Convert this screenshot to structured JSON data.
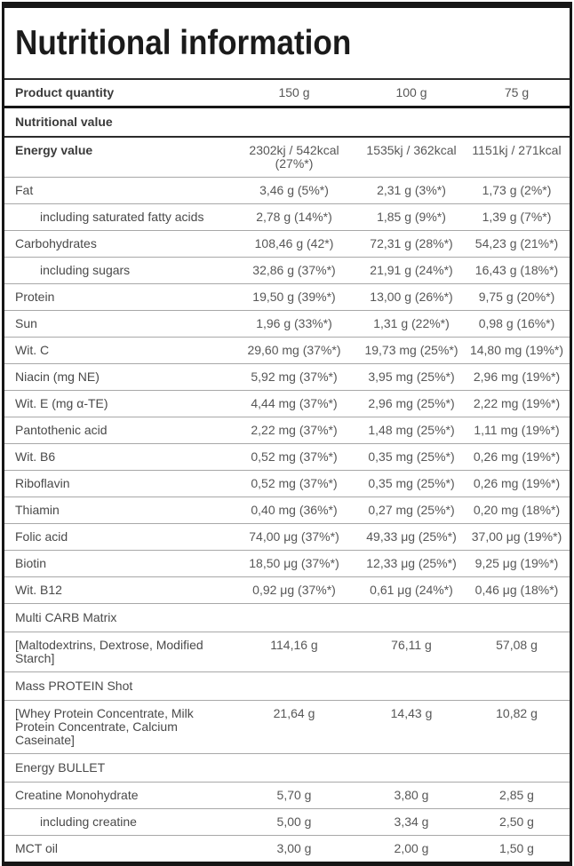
{
  "title": "Nutritional information",
  "header": {
    "label": "Product quantity",
    "values": [
      "150 g",
      "100 g",
      "75 g"
    ]
  },
  "rows": [
    {
      "type": "section",
      "bold": true,
      "sep": "dark",
      "label": "Nutritional value"
    },
    {
      "bold": true,
      "label": "Energy value",
      "values": [
        "2302kj / 542kcal (27%*)",
        "1535kj / 362kcal",
        "1151kj / 271kcal"
      ]
    },
    {
      "label": "Fat",
      "values": [
        "3,46 g (5%*)",
        "2,31 g (3%*)",
        "1,73 g (2%*)"
      ]
    },
    {
      "indent": true,
      "label": "including saturated fatty acids",
      "values": [
        "2,78 g (14%*)",
        "1,85 g (9%*)",
        "1,39 g (7%*)"
      ]
    },
    {
      "label": "Carbohydrates",
      "values": [
        "108,46 g (42*)",
        "72,31 g (28%*)",
        "54,23 g (21%*)"
      ]
    },
    {
      "indent": true,
      "label": "including sugars",
      "values": [
        "32,86 g (37%*)",
        "21,91 g (24%*)",
        "16,43 g (18%*)"
      ]
    },
    {
      "label": "Protein",
      "values": [
        "19,50 g (39%*)",
        "13,00 g (26%*)",
        "9,75 g (20%*)"
      ]
    },
    {
      "label": "Sun",
      "values": [
        "1,96 g (33%*)",
        "1,31 g (22%*)",
        "0,98 g (16%*)"
      ]
    },
    {
      "label": "Wit. C",
      "values": [
        "29,60 mg (37%*)",
        "19,73 mg (25%*)",
        "14,80 mg (19%*)"
      ]
    },
    {
      "label": "Niacin (mg NE)",
      "values": [
        "5,92 mg (37%*)",
        "3,95 mg (25%*)",
        "2,96 mg (19%*)"
      ]
    },
    {
      "label": "Wit. E (mg α-TE)",
      "values": [
        "4,44 mg (37%*)",
        "2,96 mg (25%*)",
        "2,22 mg (19%*)"
      ]
    },
    {
      "label": "Pantothenic acid",
      "values": [
        "2,22 mg (37%*)",
        "1,48 mg (25%*)",
        "1,11 mg (19%*)"
      ]
    },
    {
      "label": "Wit. B6",
      "values": [
        "0,52 mg (37%*)",
        "0,35 mg (25%*)",
        "0,26 mg (19%*)"
      ]
    },
    {
      "label": "Riboflavin",
      "values": [
        "0,52 mg (37%*)",
        "0,35 mg (25%*)",
        "0,26 mg (19%*)"
      ]
    },
    {
      "label": "Thiamin",
      "values": [
        "0,40 mg (36%*)",
        "0,27 mg (25%*)",
        "0,20 mg (18%*)"
      ]
    },
    {
      "label": "Folic acid",
      "values": [
        "74,00 μg (37%*)",
        "49,33 μg (25%*)",
        "37,00 μg (19%*)"
      ]
    },
    {
      "label": "Biotin",
      "values": [
        "18,50 μg (37%*)",
        "12,33 μg (25%*)",
        "9,25 μg (19%*)"
      ]
    },
    {
      "label": "Wit. B12",
      "values": [
        "0,92 μg (37%*)",
        "0,61 μg (24%*)",
        "0,46 μg (18%*)"
      ]
    },
    {
      "type": "section",
      "label": "Multi CARB Matrix"
    },
    {
      "label": "[Maltodextrins, Dextrose, Modified Starch]",
      "values": [
        "114,16 g",
        "76,11 g",
        "57,08 g"
      ]
    },
    {
      "type": "section",
      "label": "Mass PROTEIN Shot"
    },
    {
      "label": "[Whey Protein Concentrate, Milk Protein Concentrate, Calcium Caseinate]",
      "values": [
        "21,64 g",
        "14,43 g",
        "10,82 g"
      ]
    },
    {
      "type": "section",
      "label": "Energy BULLET"
    },
    {
      "label": "Creatine Monohydrate",
      "values": [
        "5,70 g",
        "3,80 g",
        "2,85 g"
      ]
    },
    {
      "indent": true,
      "label": "including creatine",
      "values": [
        "5,00 g",
        "3,34 g",
        "2,50 g"
      ]
    },
    {
      "label": "MCT oil",
      "values": [
        "3,00 g",
        "2,00 g",
        "1,50 g"
      ]
    }
  ],
  "colors": {
    "border_dark": "#161616",
    "separator_light": "#a8a8a8",
    "title_text": "#1b1b1b",
    "label_text": "#494949",
    "value_text": "#575757"
  }
}
